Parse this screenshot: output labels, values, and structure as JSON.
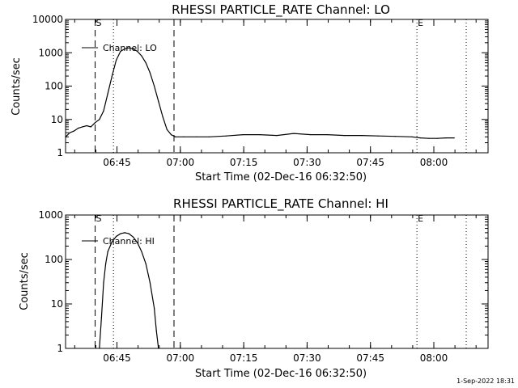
{
  "footer": {
    "timestamp": "1-Sep-2022 18:31"
  },
  "chart_data": [
    {
      "type": "line",
      "title": "RHESSI PARTICLE_RATE Channel: LO",
      "xlabel": "Start Time (02-Dec-16 06:32:50)",
      "ylabel": "Counts/sec",
      "yscale": "log",
      "grid": false,
      "legend_placement": "top-left",
      "xtick_labels": [
        "06:45",
        "07:00",
        "07:15",
        "07:30",
        "07:45",
        "08:00"
      ],
      "ytick_labels": [
        "1",
        "10",
        "100",
        "1000",
        "10000"
      ],
      "ylim": [
        1,
        10000
      ],
      "xlim": [
        "06:32:50",
        "08:12:50"
      ],
      "markers": [
        {
          "time": "06:39:50",
          "style": "dashed",
          "label": "S"
        },
        {
          "time": "06:58:30",
          "style": "dashed",
          "label": ""
        },
        {
          "time": "06:44:10",
          "style": "dotted",
          "label": ""
        },
        {
          "time": "07:56:00",
          "style": "dotted",
          "label": "E"
        },
        {
          "time": "08:07:40",
          "style": "dotted",
          "label": ""
        }
      ],
      "series": [
        {
          "name": "Channel: LO",
          "x": [
            "06:32:50",
            "06:33:50",
            "06:34:50",
            "06:35:50",
            "06:36:50",
            "06:37:50",
            "06:38:50",
            "06:39:50",
            "06:40:50",
            "06:41:50",
            "06:42:50",
            "06:43:50",
            "06:44:50",
            "06:45:50",
            "06:46:50",
            "06:47:50",
            "06:48:50",
            "06:49:50",
            "06:50:50",
            "06:51:50",
            "06:52:50",
            "06:53:50",
            "06:54:50",
            "06:55:50",
            "06:56:50",
            "06:57:50",
            "06:58:50",
            "07:00:50",
            "07:03:50",
            "07:06:50",
            "07:10:50",
            "07:14:50",
            "07:18:50",
            "07:22:50",
            "07:26:50",
            "07:30:50",
            "07:34:50",
            "07:38:50",
            "07:42:50",
            "07:46:50",
            "07:50:50",
            "07:54:50",
            "07:56:50",
            "07:58:50",
            "08:00:50",
            "08:02:50",
            "08:04:50"
          ],
          "y": [
            3,
            4,
            4.5,
            5.5,
            6,
            6.5,
            6,
            8,
            10,
            18,
            60,
            200,
            600,
            1100,
            1300,
            1400,
            1300,
            1100,
            800,
            500,
            250,
            100,
            35,
            12,
            5,
            3.5,
            3,
            3,
            3,
            3,
            3.2,
            3.5,
            3.5,
            3.3,
            3.8,
            3.5,
            3.5,
            3.3,
            3.3,
            3.2,
            3.1,
            3,
            2.8,
            2.7,
            2.7,
            2.8,
            2.8
          ]
        }
      ]
    },
    {
      "type": "line",
      "title": "RHESSI PARTICLE_RATE Channel: HI",
      "xlabel": "Start Time (02-Dec-16 06:32:50)",
      "ylabel": "Counts/sec",
      "yscale": "log",
      "grid": false,
      "legend_placement": "top-left",
      "xtick_labels": [
        "06:45",
        "07:00",
        "07:15",
        "07:30",
        "07:45",
        "08:00"
      ],
      "ytick_labels": [
        "1",
        "10",
        "100",
        "1000"
      ],
      "ylim": [
        1,
        1000
      ],
      "xlim": [
        "06:32:50",
        "08:12:50"
      ],
      "markers": [
        {
          "time": "06:39:50",
          "style": "dashed",
          "label": "S"
        },
        {
          "time": "06:58:30",
          "style": "dashed",
          "label": ""
        },
        {
          "time": "06:44:10",
          "style": "dotted",
          "label": ""
        },
        {
          "time": "07:56:00",
          "style": "dotted",
          "label": "E"
        },
        {
          "time": "08:07:40",
          "style": "dotted",
          "label": ""
        }
      ],
      "series": [
        {
          "name": "Channel: HI",
          "x": [
            "06:40:50",
            "06:41:20",
            "06:41:50",
            "06:42:20",
            "06:42:50",
            "06:43:50",
            "06:44:50",
            "06:45:50",
            "06:46:50",
            "06:47:50",
            "06:48:50",
            "06:49:50",
            "06:50:50",
            "06:51:50",
            "06:52:50",
            "06:53:50",
            "06:54:20",
            "06:54:50"
          ],
          "y": [
            1,
            5,
            30,
            80,
            150,
            250,
            330,
            380,
            400,
            380,
            320,
            240,
            150,
            80,
            30,
            8,
            2.5,
            1
          ]
        }
      ]
    }
  ]
}
